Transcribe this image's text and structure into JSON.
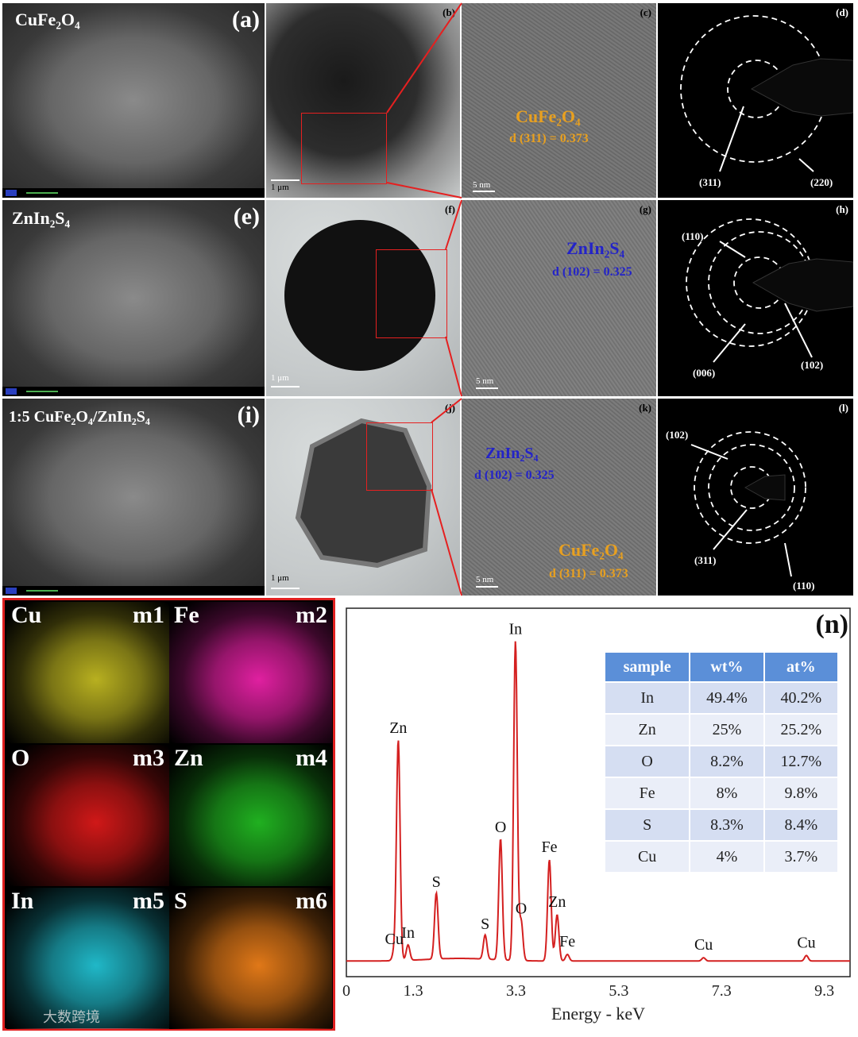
{
  "row1": {
    "a": {
      "label": "(a)",
      "title": "CuFe₂O₄"
    },
    "b": {
      "label": "(b)",
      "scale": "1 μm"
    },
    "c": {
      "label": "(c)",
      "phase": "CuFe₂O₄",
      "dspacing": "d (311) = 0.373",
      "scale": "5 nm"
    },
    "d": {
      "label": "(d)",
      "ring1": "(311)",
      "ring2": "(220)"
    }
  },
  "row2": {
    "e": {
      "label": "(e)",
      "title": "ZnIn₂S₄"
    },
    "f": {
      "label": "(f)",
      "scale": "1 μm"
    },
    "g": {
      "label": "(g)",
      "phase": "ZnIn₂S₄",
      "dspacing": "d (102) = 0.325",
      "scale": "5 nm"
    },
    "h": {
      "label": "(h)",
      "ring1": "(110)",
      "ring2": "(006)",
      "ring3": "(102)"
    }
  },
  "row3": {
    "i": {
      "label": "(i)",
      "title": "1:5 CuFe₂O₄/ZnIn₂S₄"
    },
    "j": {
      "label": "(j)",
      "scale": "1 μm"
    },
    "k": {
      "label": "(k)",
      "phase1": "ZnIn₂S₄",
      "dspacing1": "d (102) = 0.325",
      "phase2": "CuFe₂O₄",
      "dspacing2": "d (311) = 0.373",
      "scale": "5 nm"
    },
    "l": {
      "label": "(l)",
      "ring1": "(102)",
      "ring2": "(311)",
      "ring3": "(110)"
    }
  },
  "maps": [
    {
      "element": "Cu",
      "tag": "m1",
      "color": "#b8b020"
    },
    {
      "element": "Fe",
      "tag": "m2",
      "color": "#e020a0"
    },
    {
      "element": "O",
      "tag": "m3",
      "color": "#d01818"
    },
    {
      "element": "Zn",
      "tag": "m4",
      "color": "#20b020"
    },
    {
      "element": "In",
      "tag": "m5",
      "color": "#20b8c8"
    },
    {
      "element": "S",
      "tag": "m6",
      "color": "#e07818"
    }
  ],
  "watermark": "大数跨境",
  "chart_data": {
    "type": "line",
    "panel_label": "(n)",
    "xlabel": "Energy - keV",
    "xlim": [
      0,
      9.8
    ],
    "xticks": [
      0,
      1.3,
      3.3,
      5.3,
      7.3,
      9.3
    ],
    "xtick_labels": [
      "0",
      "1.3",
      "3.3",
      "5.3",
      "7.3",
      "9.3"
    ],
    "color": "#d42020",
    "peaks": [
      {
        "label": "Cu",
        "x": 0.93,
        "y": 4
      },
      {
        "label": "Zn",
        "x": 1.01,
        "y": 100
      },
      {
        "label": "In",
        "x": 1.2,
        "y": 7
      },
      {
        "label": "S",
        "x": 1.75,
        "y": 30
      },
      {
        "label": "S",
        "x": 2.7,
        "y": 11
      },
      {
        "label": "O",
        "x": 3.0,
        "y": 55
      },
      {
        "label": "In",
        "x": 3.29,
        "y": 145
      },
      {
        "label": "O",
        "x": 3.4,
        "y": 18
      },
      {
        "label": "Fe",
        "x": 3.95,
        "y": 46
      },
      {
        "label": "Zn",
        "x": 4.1,
        "y": 21
      },
      {
        "label": "Fe",
        "x": 4.3,
        "y": 3
      },
      {
        "label": "Cu",
        "x": 6.95,
        "y": 1.5
      },
      {
        "label": "Cu",
        "x": 8.95,
        "y": 2.5
      }
    ],
    "table": {
      "headers": [
        "sample",
        "wt%",
        "at%"
      ],
      "rows": [
        [
          "In",
          "49.4%",
          "40.2%"
        ],
        [
          "Zn",
          "25%",
          "25.2%"
        ],
        [
          "O",
          "8.2%",
          "12.7%"
        ],
        [
          "Fe",
          "8%",
          "9.8%"
        ],
        [
          "S",
          "8.3%",
          "8.4%"
        ],
        [
          "Cu",
          "4%",
          "3.7%"
        ]
      ]
    }
  }
}
